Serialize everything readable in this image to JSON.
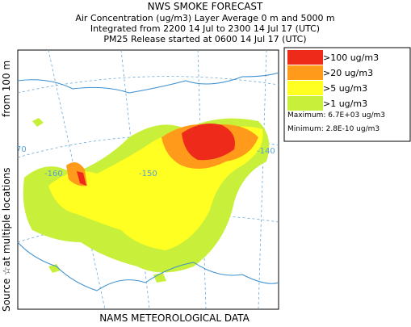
{
  "title": "NWS SMOKE FORECAST",
  "subtitle": [
    "Air Concentration (ug/m3) Layer Average    0 m and  5000 m",
    "Integrated from 2200 14 Jul to 2300 14 Jul 17 (UTC)",
    "PM25 Release started at 0600 14 Jul 17 (UTC)"
  ],
  "side_label": [
    "Source ☆",
    "at multiple locations",
    "from  100 m"
  ],
  "legend": {
    "items": [
      {
        "label": ">100 ug/m3",
        "color": "#ee2a1a"
      },
      {
        "label": ">20 ug/m3",
        "color": "#ff9a1a"
      },
      {
        "label": ">5 ug/m3",
        "color": "#ffff22"
      },
      {
        "label": ">1 ug/m3",
        "color": "#c8f03a"
      }
    ],
    "maximum": "Maximum: 6.7E+03 ug/m3",
    "minimum": "Minimum: 2.8E-10 ug/m3"
  },
  "grid_labels": [
    "70",
    "-160",
    "-150",
    "-140"
  ],
  "footer": "NAMS METEOROLOGICAL DATA"
}
